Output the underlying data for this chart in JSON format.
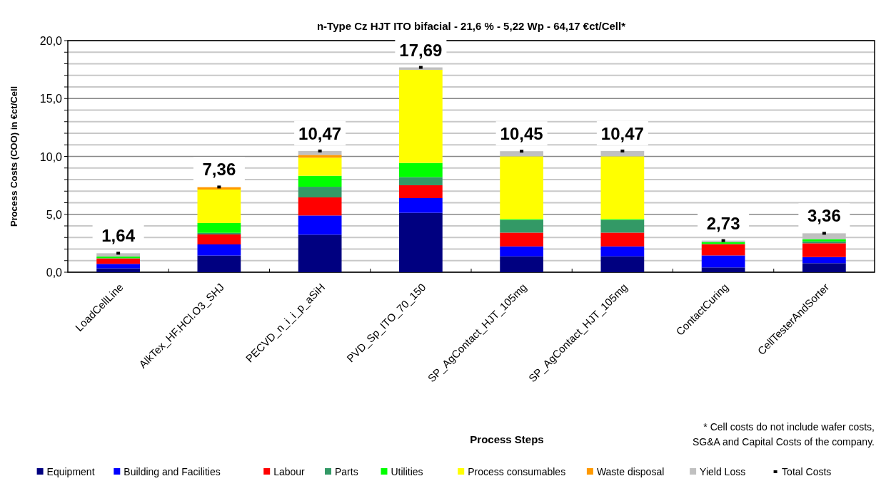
{
  "chart_data": {
    "type": "bar",
    "stacked": true,
    "title": "n-Type Cz HJT ITO bifacial  -  21,6 %  -  5,22 Wp  -  64,17 €ct/Cell*",
    "xlabel": "Process Steps",
    "ylabel": "Process Costs (COO) in €ct/Cell",
    "annotations": [
      "* Cell costs do not include wafer costs,\nSG&A and Capital Costs of the company."
    ],
    "categories": [
      "LoadCellLine",
      "AlkTex_HF.HCl.O3_SHJ",
      "PECVD_n_i_i_p_aSiH",
      "PVD_Sp_ITO_70_150",
      "SP_AgContact_HJT_105mg",
      "SP_AgContact_HJT_105mg",
      "ContactCuring",
      "CellTesterAndSorter"
    ],
    "series": [
      {
        "name": "Equipment",
        "color": "#000080",
        "values": [
          0.33,
          1.44,
          3.24,
          5.13,
          1.37,
          1.37,
          0.41,
          0.78
        ]
      },
      {
        "name": "Building and Facilities",
        "color": "#0000ff",
        "values": [
          0.39,
          0.96,
          1.66,
          1.27,
          0.86,
          0.86,
          1.04,
          0.53
        ]
      },
      {
        "name": "Labour",
        "color": "#ff0000",
        "values": [
          0.47,
          0.86,
          1.56,
          1.11,
          1.19,
          1.19,
          0.97,
          1.19
        ]
      },
      {
        "name": "Parts",
        "color": "#339966",
        "values": [
          0.02,
          0.14,
          0.92,
          0.7,
          1.09,
          1.09,
          0.02,
          0.16
        ]
      },
      {
        "name": "Utilities",
        "color": "#00ff00",
        "values": [
          0.14,
          0.85,
          0.95,
          1.23,
          0.08,
          0.08,
          0.16,
          0.19
        ]
      },
      {
        "name": "Process consumables",
        "color": "#ffff00",
        "values": [
          0,
          2.89,
          1.56,
          8.04,
          5.42,
          5.42,
          0,
          0
        ]
      },
      {
        "name": "Waste disposal",
        "color": "#ff9900",
        "values": [
          0,
          0.2,
          0.24,
          0,
          0,
          0,
          0,
          0
        ]
      },
      {
        "name": "Yield Loss",
        "color": "#c0c0c0",
        "values": [
          0.29,
          null,
          0.34,
          0.21,
          0.44,
          0.46,
          0.13,
          0.51
        ]
      },
      {
        "name": "Total Costs",
        "type": "scatter",
        "marker": "square",
        "color": "#000000",
        "values": [
          1.64,
          7.36,
          10.47,
          17.69,
          10.45,
          10.47,
          2.73,
          3.36
        ],
        "value_labels": [
          "1,64",
          "7,36",
          "10,47",
          "17,69",
          "10,45",
          "10,47",
          "2,73",
          "3,36"
        ]
      }
    ],
    "ylim": [
      0,
      20
    ],
    "yticks": [
      {
        "value": 0,
        "label": "0,0"
      },
      {
        "value": 1,
        "label": null
      },
      {
        "value": 2,
        "label": null
      },
      {
        "value": 3,
        "label": null
      },
      {
        "value": 4,
        "label": null
      },
      {
        "value": 5,
        "label": "5,0"
      },
      {
        "value": 6,
        "label": null
      },
      {
        "value": 7,
        "label": null
      },
      {
        "value": 8,
        "label": null
      },
      {
        "value": 9,
        "label": null
      },
      {
        "value": 10,
        "label": "10,0"
      },
      {
        "value": 11,
        "label": null
      },
      {
        "value": 12,
        "label": null
      },
      {
        "value": 13,
        "label": null
      },
      {
        "value": 14,
        "label": null
      },
      {
        "value": 15,
        "label": "15,0"
      },
      {
        "value": 16,
        "label": null
      },
      {
        "value": 17,
        "label": null
      },
      {
        "value": 18,
        "label": null
      },
      {
        "value": 19,
        "label": null
      },
      {
        "value": 20,
        "label": "20,0"
      }
    ],
    "grid": "y",
    "legend": "bottom"
  }
}
